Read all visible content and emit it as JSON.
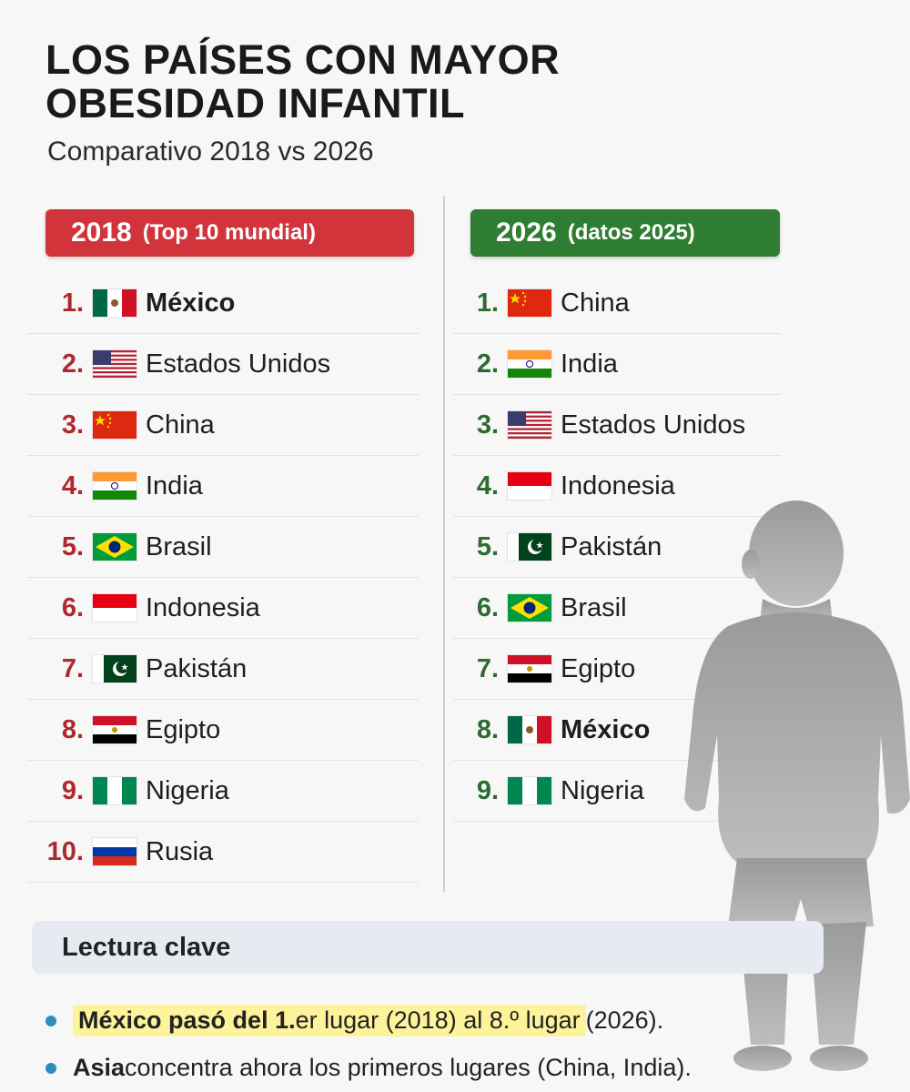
{
  "title_line1": "LOS PAÍSES CON MAYOR",
  "title_line2": "OBESIDAD INFANTIL",
  "subtitle": "Comparativo 2018 vs 2026",
  "col2018": {
    "year": "2018",
    "note": "(Top 10 mundial)",
    "color": "#d2343c",
    "items": [
      {
        "rank": "1.",
        "country": "México",
        "flag": "mexico-flag",
        "bold": true
      },
      {
        "rank": "2.",
        "country": "Estados Unidos",
        "flag": "usa-flag"
      },
      {
        "rank": "3.",
        "country": "China",
        "flag": "china-flag"
      },
      {
        "rank": "4.",
        "country": "India",
        "flag": "india-flag"
      },
      {
        "rank": "5.",
        "country": "Brasil",
        "flag": "brazil-flag"
      },
      {
        "rank": "6.",
        "country": "Indonesia",
        "flag": "indonesia-flag"
      },
      {
        "rank": "7.",
        "country": "Pakistán",
        "flag": "pakistan-flag"
      },
      {
        "rank": "8.",
        "country": "Egipto",
        "flag": "egypt-flag"
      },
      {
        "rank": "9.",
        "country": "Nigeria",
        "flag": "nigeria-flag"
      },
      {
        "rank": "10.",
        "country": "Rusia",
        "flag": "russia-flag"
      }
    ]
  },
  "col2026": {
    "year": "2026",
    "note": "(datos 2025)",
    "color": "#2e7d32",
    "items": [
      {
        "rank": "1.",
        "country": "China",
        "flag": "china-flag"
      },
      {
        "rank": "2.",
        "country": "India",
        "flag": "india-flag"
      },
      {
        "rank": "3.",
        "country": "Estados Unidos",
        "flag": "usa-flag"
      },
      {
        "rank": "4.",
        "country": "Indonesia",
        "flag": "indonesia-flag"
      },
      {
        "rank": "5.",
        "country": "Pakistán",
        "flag": "pakistan-flag"
      },
      {
        "rank": "6.",
        "country": "Brasil",
        "flag": "brazil-flag"
      },
      {
        "rank": "7.",
        "country": "Egipto",
        "flag": "egypt-flag"
      },
      {
        "rank": "8.",
        "country": "México",
        "flag": "mexico-flag",
        "bold": true
      },
      {
        "rank": "9.",
        "country": "Nigeria",
        "flag": "nigeria-flag"
      }
    ]
  },
  "key": {
    "heading": "Lectura clave",
    "bullet1_bold": "México pasó del 1.",
    "bullet1_rest": "er lugar (2018) al 8.º lugar",
    "bullet1_tail": " (2026).",
    "bullet2_bold": "Asia",
    "bullet2_rest": " concentra ahora los primeros lugares (China, India)."
  },
  "illustration": "child-silhouette-icon"
}
